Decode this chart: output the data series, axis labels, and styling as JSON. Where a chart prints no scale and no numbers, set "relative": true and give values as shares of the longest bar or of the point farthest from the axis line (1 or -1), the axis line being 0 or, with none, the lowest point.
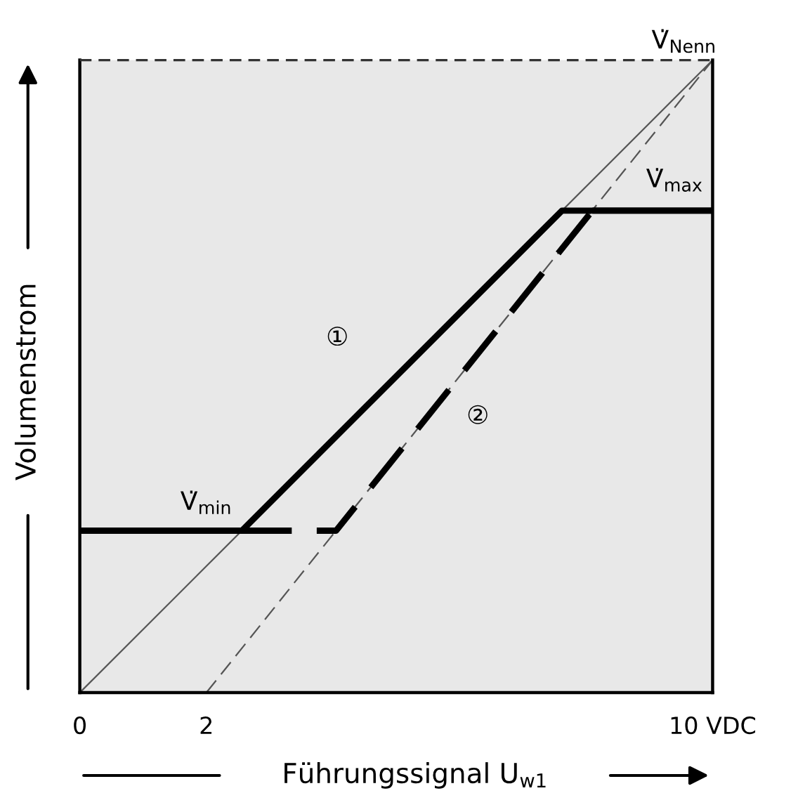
{
  "chart_data": {
    "type": "line",
    "relative": true,
    "xlabel": "Führungssignal U$_{w1}$",
    "ylabel": "Volumenstrom",
    "xlim": [
      0,
      10
    ],
    "xticks": [
      0,
      2,
      {
        "value": 10,
        "label": "10 VDC"
      }
    ],
    "series": [
      {
        "color": "#555555",
        "line_style": "solid",
        "x": [
          0,
          10
        ],
        "values": [
          0,
          1
        ]
      },
      {
        "color": "#555555",
        "line_style": "dashed",
        "x": [
          2,
          10
        ],
        "values": [
          0,
          1
        ]
      },
      {
        "color": "#000000",
        "line_style": "solid",
        "x": [
          0,
          2.56,
          7.62,
          10
        ],
        "values": [
          0.256,
          0.256,
          0.762,
          0.762
        ]
      },
      {
        "color": "#000000",
        "line_style": "dashed",
        "x": [
          2.56,
          4.05,
          8.1
        ],
        "values": [
          0.256,
          0.256,
          0.762
        ]
      },
      {
        "color": "#000000",
        "line_style": "solid",
        "x": [
          8.1,
          10
        ],
        "values": [
          0.762,
          0.762
        ]
      }
    ],
    "ref_lines": [
      {
        "axis": "y",
        "value": 1,
        "label": "V̇$_{Nenn}$",
        "line_style": "dashed",
        "color": "#333333"
      }
    ],
    "annotations": [
      "①",
      "②",
      "V̇$_{min}$",
      "V̇$_{max}$"
    ],
    "grid": false,
    "legend": false
  }
}
